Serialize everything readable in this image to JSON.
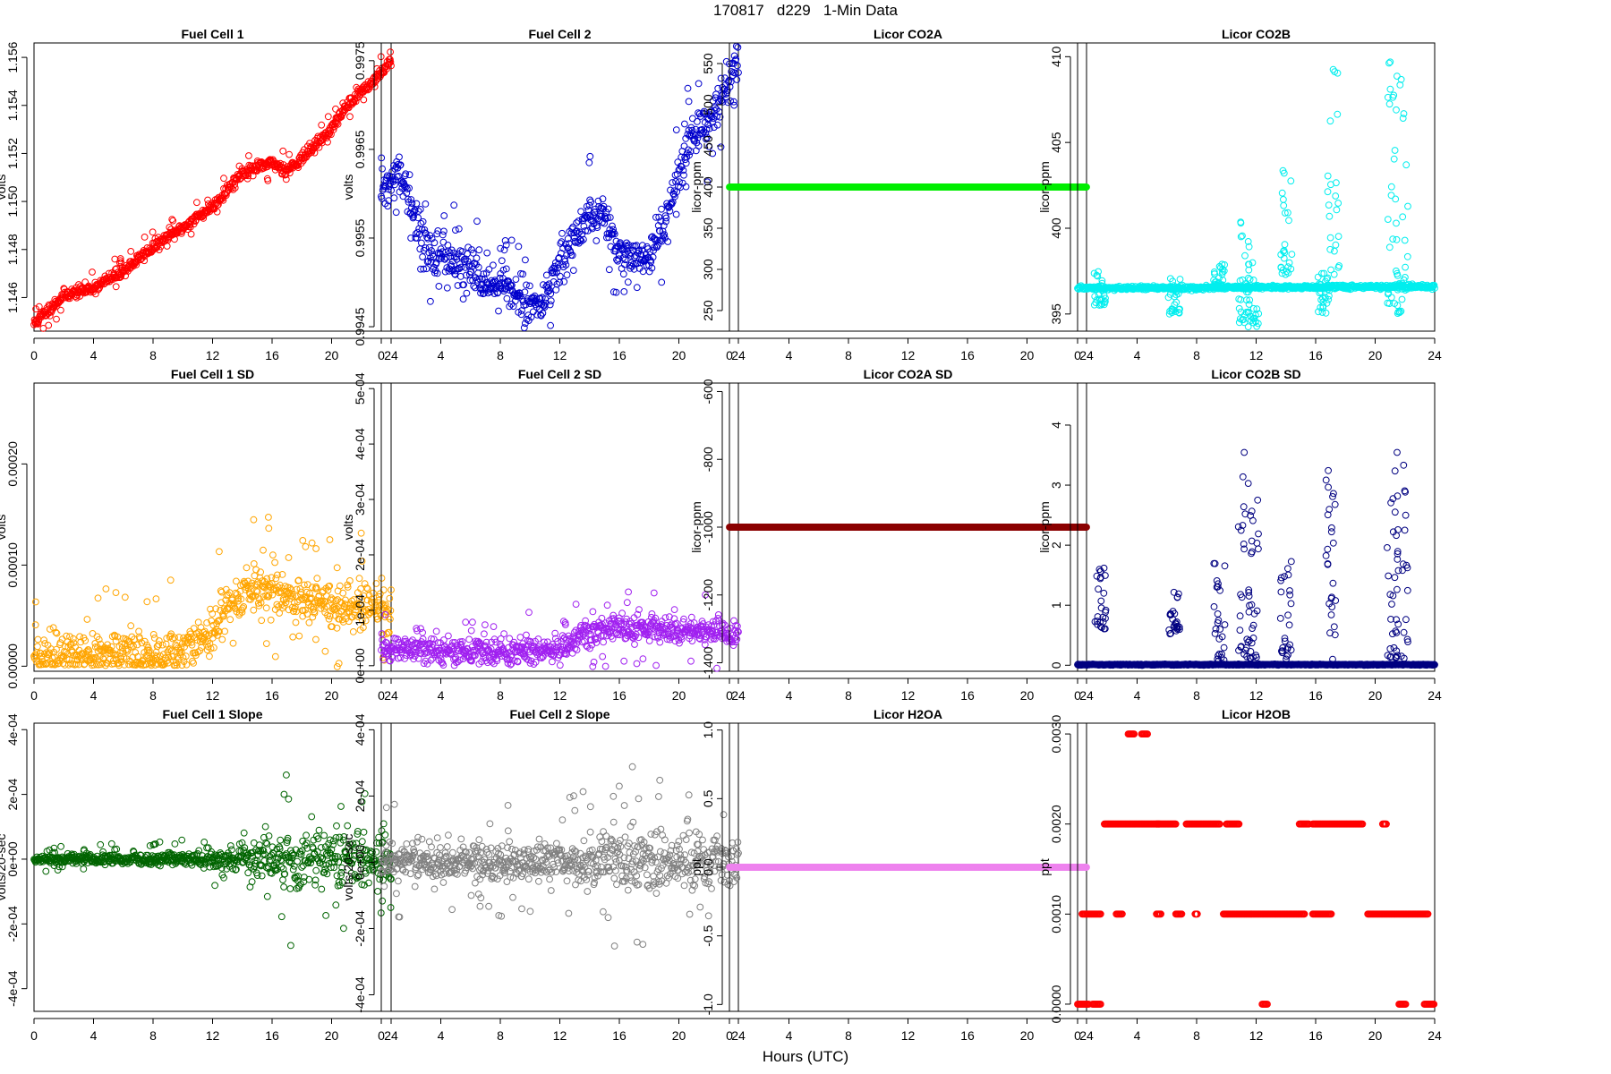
{
  "figure": {
    "title": "170817   d229   1-Min Data",
    "xlabel": "Hours (UTC)"
  },
  "chart_data": [
    {
      "type": "scatter",
      "title": "Fuel Cell 1",
      "ylabel": "volts",
      "color": "#ff0000",
      "xlim": [
        0,
        24
      ],
      "xticks": [
        0,
        4,
        8,
        12,
        16,
        20,
        24
      ],
      "xtick_labels": [
        "0",
        "4",
        "8",
        "12",
        "16",
        "20",
        "24"
      ],
      "ylim": [
        1.1446,
        1.1566
      ],
      "yticks": [
        1.146,
        1.148,
        1.15,
        1.152,
        1.154,
        1.156
      ],
      "ytick_labels": [
        "1.146",
        "1.148",
        "1.150",
        "1.152",
        "1.154",
        "1.156"
      ],
      "trend": [
        [
          0,
          1.1449
        ],
        [
          1,
          1.1455
        ],
        [
          2,
          1.1461
        ],
        [
          4,
          1.1464
        ],
        [
          6,
          1.1471
        ],
        [
          8,
          1.1481
        ],
        [
          10,
          1.1489
        ],
        [
          12,
          1.1498
        ],
        [
          14,
          1.1512
        ],
        [
          16,
          1.1516
        ],
        [
          17,
          1.1513
        ],
        [
          18,
          1.1518
        ],
        [
          20,
          1.153
        ],
        [
          21,
          1.154
        ],
        [
          22,
          1.1546
        ],
        [
          23,
          1.1551
        ],
        [
          24,
          1.1559
        ]
      ],
      "noise": 0.00012,
      "seed": 11
    },
    {
      "type": "scatter",
      "title": "Fuel Cell 2",
      "ylabel": "volts",
      "color": "#0000cc",
      "xlim": [
        0,
        24
      ],
      "xticks": [
        0,
        4,
        8,
        12,
        16,
        20,
        24
      ],
      "xtick_labels": [
        "0",
        "4",
        "8",
        "12",
        "16",
        "20",
        "24"
      ],
      "ylim": [
        0.99445,
        0.9977
      ],
      "yticks": [
        0.9945,
        0.9955,
        0.9965,
        0.9975
      ],
      "ytick_labels": [
        "0.9945",
        "0.9955",
        "0.9965",
        "0.9975"
      ],
      "trend": [
        [
          0,
          0.996
        ],
        [
          1,
          0.9962
        ],
        [
          1.5,
          0.9961
        ],
        [
          3,
          0.9954
        ],
        [
          4,
          0.9953
        ],
        [
          6,
          0.9951
        ],
        [
          8,
          0.995
        ],
        [
          10,
          0.99475
        ],
        [
          11,
          0.9948
        ],
        [
          12,
          0.9952
        ],
        [
          13,
          0.9955
        ],
        [
          14,
          0.9958
        ],
        [
          15,
          0.9957
        ],
        [
          16,
          0.9953
        ],
        [
          17,
          0.9952
        ],
        [
          18,
          0.9953
        ],
        [
          19,
          0.9956
        ],
        [
          20,
          0.9962
        ],
        [
          21,
          0.9967
        ],
        [
          22,
          0.9968
        ],
        [
          23,
          0.9972
        ],
        [
          24,
          0.9975
        ]
      ],
      "noise": 0.00012,
      "seed": 22
    },
    {
      "type": "scatter",
      "title": "Licor CO2A",
      "ylabel": "licor-ppm",
      "color": "#00ee00",
      "xlim": [
        0,
        24
      ],
      "xticks": [
        0,
        4,
        8,
        12,
        16,
        20,
        24
      ],
      "xtick_labels": [
        "0",
        "4",
        "8",
        "12",
        "16",
        "20",
        "24"
      ],
      "ylim": [
        225,
        575
      ],
      "yticks": [
        250,
        300,
        350,
        400,
        450,
        500,
        550
      ],
      "ytick_labels": [
        "250",
        "300",
        "350",
        "400",
        "450",
        "500",
        "550"
      ],
      "trend": [
        [
          0,
          400
        ],
        [
          24,
          400
        ]
      ],
      "noise": 0,
      "seed": 33
    },
    {
      "type": "scatter",
      "title": "Licor CO2B",
      "ylabel": "licor-ppm",
      "color": "#00eeee",
      "xlim": [
        0,
        24
      ],
      "xticks": [
        0,
        4,
        8,
        12,
        16,
        20,
        24
      ],
      "xtick_labels": [
        "0",
        "4",
        "8",
        "12",
        "16",
        "20",
        "24"
      ],
      "ylim": [
        394,
        410.8
      ],
      "yticks": [
        395,
        400,
        405,
        410
      ],
      "ytick_labels": [
        "395",
        "400",
        "405",
        "410"
      ],
      "trend": [
        [
          0,
          396.5
        ],
        [
          24,
          396.6
        ]
      ],
      "noise": 0.06,
      "seed": 44,
      "spikes": [
        [
          1.5,
          395.5,
          397.5
        ],
        [
          6.5,
          395,
          397.5
        ],
        [
          9.5,
          396.5,
          398
        ],
        [
          11.2,
          394.5,
          401
        ],
        [
          11.8,
          394,
          398.5
        ],
        [
          14,
          397,
          404
        ],
        [
          16.5,
          395,
          397.5
        ],
        [
          17.2,
          397,
          410.8
        ],
        [
          21.2,
          395,
          410.8
        ],
        [
          21.8,
          395,
          409
        ]
      ]
    },
    {
      "type": "scatter",
      "title": "Fuel Cell 1 SD",
      "ylabel": "volts",
      "color": "#ffa500",
      "xlim": [
        0,
        24
      ],
      "xticks": [
        0,
        4,
        8,
        12,
        16,
        20,
        24
      ],
      "xtick_labels": [
        "0",
        "4",
        "8",
        "12",
        "16",
        "20",
        "24"
      ],
      "ylim": [
        -5e-06,
        0.00028
      ],
      "yticks": [
        0,
        0.0001,
        0.0002
      ],
      "ytick_labels": [
        "0.00000",
        "0.00010",
        "0.00020"
      ],
      "trend": [
        [
          0,
          1.2e-05
        ],
        [
          8,
          1e-05
        ],
        [
          11,
          2e-05
        ],
        [
          12,
          3.5e-05
        ],
        [
          13,
          6e-05
        ],
        [
          15,
          8e-05
        ],
        [
          17,
          7e-05
        ],
        [
          20,
          6e-05
        ],
        [
          24,
          6e-05
        ]
      ],
      "noise": 1.2e-05,
      "seed": 55
    },
    {
      "type": "scatter",
      "title": "Fuel Cell 2 SD",
      "ylabel": "volts",
      "color": "#a020f0",
      "xlim": [
        0,
        24
      ],
      "xticks": [
        0,
        4,
        8,
        12,
        16,
        20,
        24
      ],
      "xtick_labels": [
        "0",
        "4",
        "8",
        "12",
        "16",
        "20",
        "24"
      ],
      "ylim": [
        -1e-05,
        0.00051
      ],
      "yticks": [
        0,
        0.0001,
        0.0002,
        0.0003,
        0.0004,
        0.0005
      ],
      "ytick_labels": [
        "0e+00",
        "1e-04",
        "2e-04",
        "3e-04",
        "4e-04",
        "5e-04"
      ],
      "trend": [
        [
          0,
          3e-05
        ],
        [
          8,
          2.5e-05
        ],
        [
          12,
          3e-05
        ],
        [
          14,
          6e-05
        ],
        [
          16,
          7e-05
        ],
        [
          20,
          6e-05
        ],
        [
          24,
          6e-05
        ]
      ],
      "noise": 1.2e-05,
      "seed": 66
    },
    {
      "type": "scatter",
      "title": "Licor CO2A SD",
      "ylabel": "licor-ppm",
      "color": "#8b0000",
      "xlim": [
        0,
        24
      ],
      "xticks": [
        0,
        4,
        8,
        12,
        16,
        20,
        24
      ],
      "xtick_labels": [
        "0",
        "4",
        "8",
        "12",
        "16",
        "20",
        "24"
      ],
      "ylim": [
        -1425,
        -575
      ],
      "yticks": [
        -1400,
        -1200,
        -1000,
        -800,
        -600
      ],
      "ytick_labels": [
        "-1400",
        "-1200",
        "-1000",
        "-800",
        "-600"
      ],
      "trend": [
        [
          0,
          -1000
        ],
        [
          24,
          -1000
        ]
      ],
      "noise": 0,
      "seed": 77
    },
    {
      "type": "scatter",
      "title": "Licor CO2B SD",
      "ylabel": "licor-ppm",
      "color": "#000080",
      "xlim": [
        0,
        24
      ],
      "xticks": [
        0,
        4,
        8,
        12,
        16,
        20,
        24
      ],
      "xtick_labels": [
        "0",
        "4",
        "8",
        "12",
        "16",
        "20",
        "24"
      ],
      "ylim": [
        -0.1,
        4.7
      ],
      "yticks": [
        0,
        1,
        2,
        3,
        4
      ],
      "ytick_labels": [
        "0",
        "1",
        "2",
        "3",
        "4"
      ],
      "trend": [
        [
          0,
          0.01
        ],
        [
          24,
          0.01
        ]
      ],
      "noise": 0.004,
      "seed": 88,
      "spikes": [
        [
          1.5,
          0.6,
          1.65
        ],
        [
          6.5,
          0.5,
          1.25
        ],
        [
          9.5,
          0.05,
          1.7
        ],
        [
          11.2,
          0.1,
          3.55
        ],
        [
          11.8,
          0.1,
          3.05
        ],
        [
          14,
          0.1,
          1.75
        ],
        [
          17,
          0.1,
          3.5
        ],
        [
          21.2,
          0.1,
          3.75
        ],
        [
          21.8,
          0.1,
          3.55
        ]
      ]
    },
    {
      "type": "scatter",
      "title": "Fuel Cell 1 Slope",
      "ylabel": "volts/20-sec",
      "color": "#006400",
      "xlim": [
        0,
        24
      ],
      "xticks": [
        0,
        4,
        8,
        12,
        16,
        20,
        24
      ],
      "xtick_labels": [
        "0",
        "4",
        "8",
        "12",
        "16",
        "20",
        "24"
      ],
      "ylim": [
        -0.00047,
        0.00042
      ],
      "yticks": [
        -0.0004,
        -0.0002,
        0,
        0.0002,
        0.0004
      ],
      "ytick_labels": [
        "-4e-04",
        "-2e-04",
        "0e+00",
        "2e-04",
        "4e-04"
      ],
      "trend": [
        [
          0,
          0
        ],
        [
          24,
          0
        ]
      ],
      "noise": 1e-05,
      "seed": 99,
      "noise_growth": [
        [
          0,
          0.6
        ],
        [
          10,
          1
        ],
        [
          14,
          2.5
        ],
        [
          18,
          5
        ],
        [
          24,
          4
        ]
      ]
    },
    {
      "type": "scatter",
      "title": "Fuel Cell 2 Slope",
      "ylabel": "volts/20-sec",
      "color": "#808080",
      "xlim": [
        0,
        24
      ],
      "xticks": [
        0,
        4,
        8,
        12,
        16,
        20,
        24
      ],
      "xtick_labels": [
        "0",
        "4",
        "8",
        "12",
        "16",
        "20",
        "24"
      ],
      "ylim": [
        -0.00045,
        0.00042
      ],
      "yticks": [
        -0.0004,
        -0.0002,
        0,
        0.0002,
        0.0004
      ],
      "ytick_labels": [
        "-4e-04",
        "-2e-04",
        "0e+00",
        "2e-04",
        "4e-04"
      ],
      "trend": [
        [
          0,
          0
        ],
        [
          24,
          0
        ]
      ],
      "noise": 2e-05,
      "seed": 111,
      "noise_growth": [
        [
          0,
          1.5
        ],
        [
          12,
          1.5
        ],
        [
          16,
          2.5
        ],
        [
          24,
          2.2
        ]
      ]
    },
    {
      "type": "scatter",
      "title": "Licor H2OA",
      "ylabel": "ppt",
      "color": "#ee82ee",
      "xlim": [
        0,
        24
      ],
      "xticks": [
        0,
        4,
        8,
        12,
        16,
        20,
        24
      ],
      "xtick_labels": [
        "0",
        "4",
        "8",
        "12",
        "16",
        "20",
        "24"
      ],
      "ylim": [
        -1.05,
        1.05
      ],
      "yticks": [
        -1,
        -0.5,
        0,
        0.5,
        1
      ],
      "ytick_labels": [
        "-1.0",
        "-0.5",
        "0.0",
        "0.5",
        "1.0"
      ],
      "trend": [
        [
          0,
          0
        ],
        [
          24,
          0
        ]
      ],
      "noise": 0,
      "seed": 122
    },
    {
      "type": "scatter",
      "title": "Licor H2OB",
      "ylabel": "ppt",
      "color": "#ff0000",
      "xlim": [
        0,
        24
      ],
      "xticks": [
        0,
        4,
        8,
        12,
        16,
        20,
        24
      ],
      "xtick_labels": [
        "0",
        "4",
        "8",
        "12",
        "16",
        "20",
        "24"
      ],
      "ylim": [
        -8e-05,
        0.00312
      ],
      "yticks": [
        0,
        0.001,
        0.002,
        0.003
      ],
      "ytick_labels": [
        "0.0000",
        "0.0010",
        "0.0020",
        "0.0030"
      ],
      "segments": [
        [
          0,
          0.8,
          0
        ],
        [
          1.0,
          1.6,
          0
        ],
        [
          0.3,
          1.6,
          0.001
        ],
        [
          1.8,
          5.5,
          0.002
        ],
        [
          3.4,
          3.8,
          0.003
        ],
        [
          4.3,
          4.7,
          0.003
        ],
        [
          2.6,
          3.0,
          0.001
        ],
        [
          5.3,
          6.6,
          0.002
        ],
        [
          5.3,
          5.6,
          0.001
        ],
        [
          6.6,
          7.0,
          0.001
        ],
        [
          7.3,
          9.6,
          0.002
        ],
        [
          7.9,
          8.1,
          0.001
        ],
        [
          10.0,
          10.9,
          0.002
        ],
        [
          9.8,
          15.3,
          0.001
        ],
        [
          12.4,
          12.8,
          0
        ],
        [
          14.9,
          15.6,
          0.002
        ],
        [
          15.8,
          19.2,
          0.002
        ],
        [
          15.8,
          17.1,
          0.001
        ],
        [
          20.5,
          20.8,
          0.002
        ],
        [
          19.5,
          23.6,
          0.001
        ],
        [
          21.6,
          22.1,
          0
        ],
        [
          23.3,
          24,
          0
        ]
      ]
    }
  ]
}
